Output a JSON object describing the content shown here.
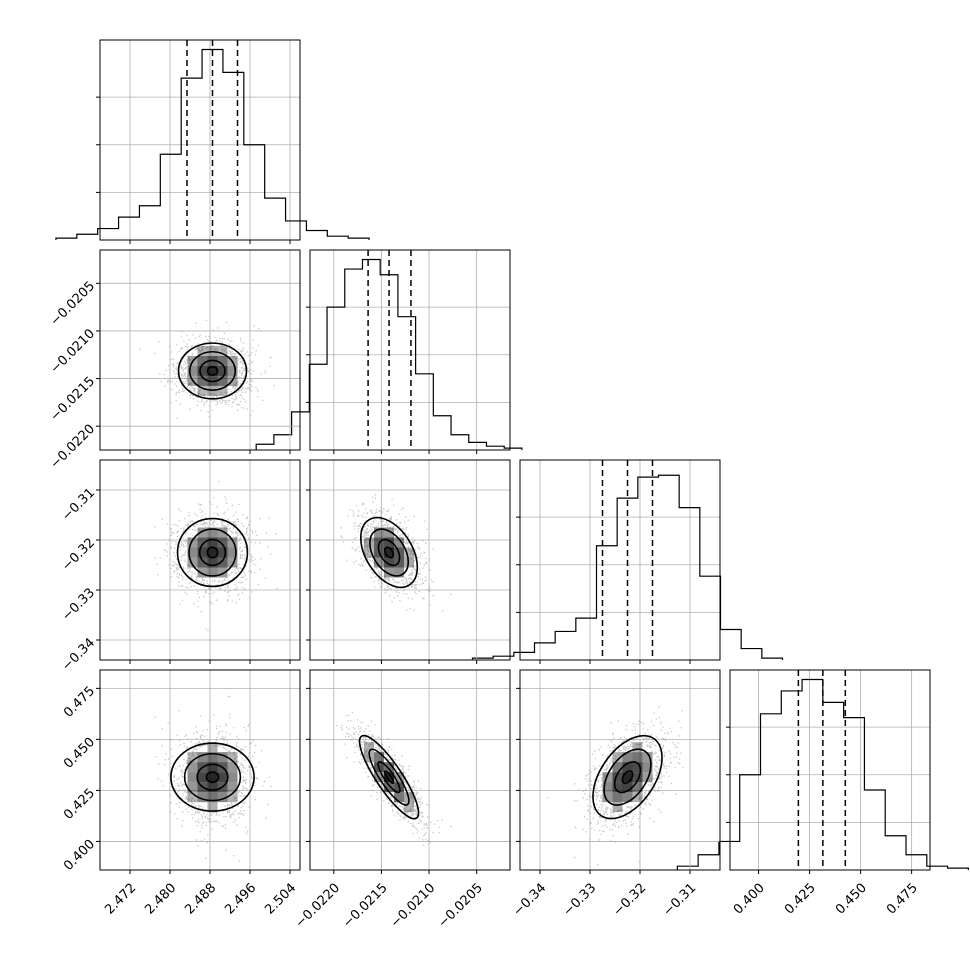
{
  "chart_data": {
    "type": "corner",
    "grid": true,
    "parameters": [
      {
        "axis_range": [
          2.466,
          2.506
        ],
        "ticks": [
          "2.472",
          "2.480",
          "2.488",
          "2.496",
          "2.504"
        ],
        "quantiles": [
          2.4834,
          2.4885,
          2.4935
        ],
        "hist_counts": [
          1,
          3,
          6,
          12,
          18,
          45,
          85,
          100,
          88,
          50,
          22,
          10,
          5,
          2,
          1
        ]
      },
      {
        "axis_range": [
          -0.02225,
          -0.02015
        ],
        "ticks": [
          "−0.0220",
          "−0.0215",
          "−0.0210",
          "−0.0205"
        ],
        "quantiles": [
          -0.02164,
          -0.02142,
          -0.02119
        ],
        "hist_counts": [
          3,
          8,
          20,
          45,
          75,
          95,
          100,
          92,
          70,
          40,
          18,
          8,
          4,
          2,
          1
        ]
      },
      {
        "axis_range": [
          -0.344,
          -0.304
        ],
        "ticks": [
          "−0.34",
          "−0.33",
          "−0.32",
          "−0.31"
        ],
        "quantiles": [
          -0.3275,
          -0.3225,
          -0.3175
        ],
        "hist_counts": [
          1,
          2,
          4,
          9,
          15,
          22,
          60,
          85,
          96,
          97,
          80,
          44,
          16,
          6,
          1
        ]
      },
      {
        "axis_range": [
          0.386,
          0.484
        ],
        "ticks": [
          "0.400",
          "0.425",
          "0.450",
          "0.475"
        ],
        "quantiles": [
          0.4195,
          0.4315,
          0.4425
        ],
        "hist_counts": [
          2,
          8,
          15,
          50,
          82,
          94,
          100,
          88,
          80,
          42,
          18,
          8,
          2,
          1
        ]
      }
    ],
    "scatter_pairs": [
      {
        "x_param": 0,
        "y_param": 1,
        "center": [
          2.4885,
          -0.02142
        ],
        "sigma": [
          0.0035,
          0.000155
        ],
        "rho": 0.0,
        "contour_scale": [
          0.22,
          0.55,
          1.0,
          1.45
        ]
      },
      {
        "x_param": 0,
        "y_param": 2,
        "center": [
          2.4885,
          -0.3225
        ],
        "sigma": [
          0.0036,
          0.0036
        ],
        "rho": 0.0,
        "contour_scale": [
          0.22,
          0.55,
          1.0,
          1.45
        ]
      },
      {
        "x_param": 1,
        "y_param": 2,
        "center": [
          -0.02142,
          -0.3225
        ],
        "sigma": [
          0.000155,
          0.0036
        ],
        "rho": -0.4,
        "contour_scale": [
          0.22,
          0.55,
          1.0,
          1.45
        ]
      },
      {
        "x_param": 0,
        "y_param": 3,
        "center": [
          2.4885,
          0.4315
        ],
        "sigma": [
          0.0036,
          0.0105
        ],
        "rho": 0.0,
        "contour_scale": [
          0.22,
          0.55,
          1.0,
          1.45
        ]
      },
      {
        "x_param": 1,
        "y_param": 3,
        "center": [
          -0.02142,
          0.4315
        ],
        "sigma": [
          0.00016,
          0.0105
        ],
        "rho": -0.85,
        "contour_scale": [
          0.22,
          0.55,
          1.0,
          1.45
        ]
      },
      {
        "x_param": 2,
        "y_param": 3,
        "center": [
          -0.3225,
          0.4315
        ],
        "sigma": [
          0.0036,
          0.0105
        ],
        "rho": 0.45,
        "contour_scale": [
          0.22,
          0.55,
          1.0,
          1.45
        ]
      }
    ],
    "colors": {
      "lines": "#000000",
      "grid": "#b0b0b0",
      "scatter": "#9a9a9a",
      "density": "#000000"
    }
  }
}
